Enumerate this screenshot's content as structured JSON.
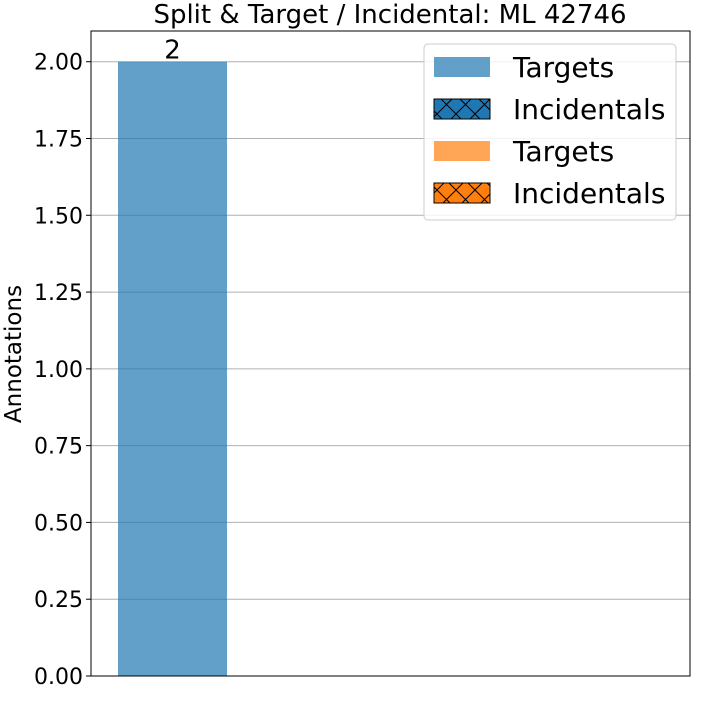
{
  "chart_data": {
    "type": "bar",
    "title": "Split & Target / Incidental: ML 42746",
    "xlabel": "",
    "ylabel": "Annotations",
    "ylim": [
      0,
      2.1
    ],
    "yticks": [
      "0.00",
      "0.25",
      "0.50",
      "0.75",
      "1.00",
      "1.25",
      "1.50",
      "1.75",
      "2.00"
    ],
    "grid": "y",
    "legend_position": "top-right",
    "bars": [
      {
        "legend_index": 0,
        "value": 2,
        "label": "2"
      }
    ],
    "legend": [
      {
        "label": "Targets",
        "color": "#1f77b4",
        "opacity": 0.7,
        "hatch": false
      },
      {
        "label": "Incidentals",
        "color": "#1f77b4",
        "opacity": 1,
        "hatch": true
      },
      {
        "label": "Targets",
        "color": "#ff7f0e",
        "opacity": 0.7,
        "hatch": false
      },
      {
        "label": "Incidentals",
        "color": "#ff7f0e",
        "opacity": 1,
        "hatch": true
      }
    ]
  }
}
